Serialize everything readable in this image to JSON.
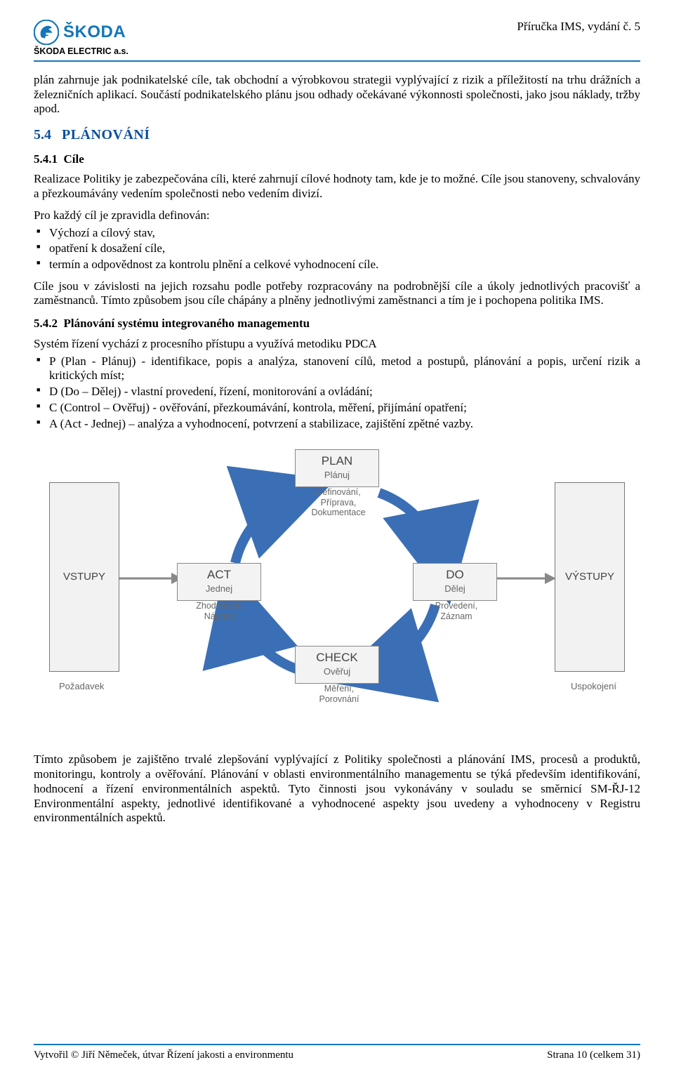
{
  "header": {
    "brand": "ŠKODA",
    "company": "ŠKODA ELECTRIC a.s.",
    "doc_title": "Příručka IMS, vydání č. 5",
    "logo_colors": {
      "ring": "#1476b8",
      "wing": "#1476b8",
      "bg": "#ffffff"
    }
  },
  "intro_paragraph": "plán zahrnuje jak podnikatelské cíle, tak obchodní a výrobkovou strategii vyplývající z rizik a příležitostí na trhu drážních a železničních aplikací. Součástí podnikatelského plánu jsou odhady očekávané výkonnosti společnosti, jako jsou náklady, tržby apod.",
  "sec_54": {
    "number": "5.4",
    "title": "PLÁNOVÁNÍ"
  },
  "sec_541": {
    "number": "5.4.1",
    "title": "Cíle",
    "p1": "Realizace Politiky je zabezpečována cíli, které zahrnují cílové hodnoty tam, kde je to možné. Cíle jsou stanoveny, schvalovány a přezkoumávány vedením společnosti nebo vedením divizí.",
    "p2": "Pro každý cíl je zpravidla definován:",
    "bullets": [
      "Výchozí a cílový stav,",
      "opatření k dosažení cíle,",
      "termín a odpovědnost za kontrolu plnění a celkové vyhodnocení cíle."
    ],
    "p3": "Cíle jsou v závislosti na jejich rozsahu podle potřeby rozpracovány na podrobnější cíle a úkoly jednotlivých pracovišť a zaměstnanců. Tímto způsobem jsou cíle chápány a plněny jednotlivými zaměstnanci a tím je i pochopena politika IMS."
  },
  "sec_542": {
    "number": "5.4.2",
    "title": "Plánování systému integrovaného managementu",
    "intro": "Systém řízení vychází z  procesního přístupu a využívá metodiku PDCA",
    "bullets": [
      "P (Plan - Plánuj) - identifikace, popis a analýza, stanovení cílů, metod a postupů, plánování a popis, určení rizik a kritických míst;",
      "D (Do – Dělej) - vlastní provedení, řízení, monitorování a ovládání;",
      "C (Control – Ověřuj) - ověřování, přezkoumávání, kontrola, měření, přijímání opatření;",
      "A (Act - Jednej) – analýza a vyhodnocení, potvrzení a stabilizace, zajištění zpětné vazby."
    ]
  },
  "diagram": {
    "type": "flowchart",
    "background_color": "#ffffff",
    "box_fill": "#f2f2f2",
    "box_border": "#808080",
    "arrow_color": "#3b6fb5",
    "text_color": "#555555",
    "inputs": {
      "box": "VSTUPY",
      "label": "Požadavek"
    },
    "outputs": {
      "box": "VÝSTUPY",
      "label": "Uspokojení"
    },
    "stages": {
      "plan": {
        "title": "PLAN",
        "sub": "Plánuj",
        "desc": "Definování,\nPříprava,\nDokumentace"
      },
      "do": {
        "title": "DO",
        "sub": "Dělej",
        "desc": "Provedení,\nZáznam"
      },
      "check": {
        "title": "CHECK",
        "sub": "Ověřuj",
        "desc": "Měření,\nPorovnání"
      },
      "act": {
        "title": "ACT",
        "sub": "Jednej",
        "desc": "Zhodnocení,\nNápravy"
      }
    }
  },
  "closing_paragraph": "Tímto způsobem je zajištěno trvalé zlepšování vyplývající z Politiky společnosti a plánování IMS, procesů a produktů, monitoringu, kontroly a ověřování. Plánování v oblasti environmentálního managementu se týká především identifikování, hodnocení a řízení environmentálních aspektů. Tyto činnosti jsou vykonávány v souladu se směrnicí SM-ŘJ-12 Environmentální aspekty, jednotlivé identifikované a vyhodnocené aspekty jsou uvedeny a vyhodnoceny v Registru environmentálních aspektů.",
  "footer": {
    "left": "Vytvořil © Jiří Němeček, útvar Řízení jakosti a environmentu",
    "right": "Strana 10 (celkem 31)"
  }
}
